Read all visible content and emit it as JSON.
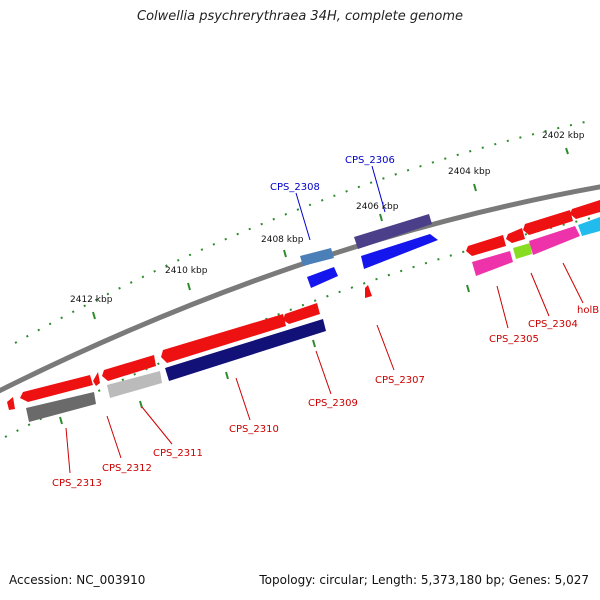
{
  "title": "Colwellia psychrerythraea 34H, complete genome",
  "footer": {
    "accession": "Accession: NC_003910",
    "summary": "Topology: circular; Length: 5,373,180 bp; Genes: 5,027"
  },
  "scale_labels": [
    "2402 kbp",
    "2404 kbp",
    "2406 kbp",
    "2408 kbp",
    "2410 kbp",
    "2412 kbp"
  ],
  "genes": [
    {
      "label": "CPS_2306",
      "color": "#0000cc"
    },
    {
      "label": "CPS_2308",
      "color": "#0000cc"
    },
    {
      "label": "CPS_2304",
      "color": "#cc0000"
    },
    {
      "label": "CPS_2305",
      "color": "#cc0000"
    },
    {
      "label": "CPS_2307",
      "color": "#cc0000"
    },
    {
      "label": "CPS_2309",
      "color": "#cc0000"
    },
    {
      "label": "CPS_2310",
      "color": "#cc0000"
    },
    {
      "label": "CPS_2311",
      "color": "#cc0000"
    },
    {
      "label": "CPS_2312",
      "color": "#cc0000"
    },
    {
      "label": "CPS_2313",
      "color": "#cc0000"
    },
    {
      "label": "holB",
      "color": "#cc0000"
    }
  ],
  "colors": {
    "backbone": "#7a7a7a",
    "tick": "#2e8b2e",
    "forward_red": "#ee1111",
    "navy": "#111177",
    "blue": "#1515ee",
    "slate": "#4a3f88",
    "steel": "#4a7fb8",
    "magenta": "#ee33aa",
    "lime": "#88dd22",
    "cyan": "#22bbee",
    "gray_dark": "#6a6a6a",
    "gray_light": "#bbbbbb"
  }
}
